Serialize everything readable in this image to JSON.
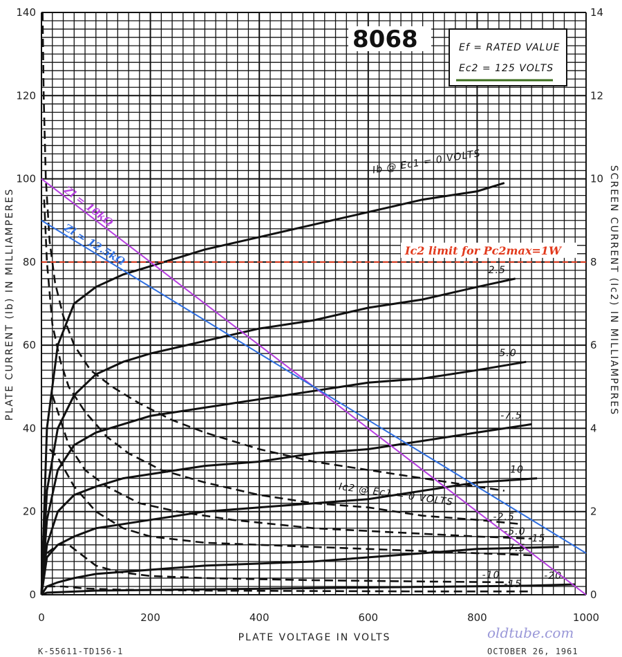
{
  "chart_data": {
    "type": "line",
    "title": "8068",
    "xlabel": "PLATE VOLTAGE IN VOLTS",
    "ylabel": "PLATE CURRENT (Ib) IN MILLIAMPERES",
    "y2label": "SCREEN CURRENT (Ic2) IN MILLIAMPERES",
    "xlim": [
      0,
      1000
    ],
    "ylim": [
      0,
      140
    ],
    "y2lim": [
      0,
      14
    ],
    "x_ticks": [
      0,
      200,
      400,
      600,
      800,
      1000
    ],
    "y_ticks": [
      0,
      20,
      40,
      60,
      80,
      100,
      120,
      140
    ],
    "y2_ticks": [
      0,
      2,
      4,
      6,
      8,
      10,
      12,
      14
    ],
    "grid": true,
    "conditions": [
      "Ef = RATED VALUE",
      "Ec2 = 125 VOLTS"
    ],
    "plate_curves": [
      {
        "label": "Ib @ Ec1 = 0 VOLTS",
        "points": [
          [
            0,
            0
          ],
          [
            10,
            40
          ],
          [
            30,
            60
          ],
          [
            60,
            70
          ],
          [
            100,
            74
          ],
          [
            150,
            77
          ],
          [
            200,
            79
          ],
          [
            300,
            83
          ],
          [
            400,
            86
          ],
          [
            500,
            89
          ],
          [
            600,
            92
          ],
          [
            700,
            95
          ],
          [
            800,
            97
          ],
          [
            850,
            99
          ]
        ]
      },
      {
        "label": "-2.5",
        "points": [
          [
            0,
            0
          ],
          [
            10,
            25
          ],
          [
            30,
            40
          ],
          [
            60,
            48
          ],
          [
            100,
            53
          ],
          [
            150,
            56
          ],
          [
            200,
            58
          ],
          [
            300,
            61
          ],
          [
            400,
            64
          ],
          [
            500,
            66
          ],
          [
            600,
            69
          ],
          [
            700,
            71
          ],
          [
            800,
            74
          ],
          [
            870,
            76
          ]
        ]
      },
      {
        "label": "-5.0",
        "points": [
          [
            0,
            0
          ],
          [
            10,
            18
          ],
          [
            30,
            30
          ],
          [
            60,
            36
          ],
          [
            100,
            39
          ],
          [
            150,
            41
          ],
          [
            200,
            43
          ],
          [
            300,
            45
          ],
          [
            400,
            47
          ],
          [
            500,
            49
          ],
          [
            600,
            51
          ],
          [
            700,
            52
          ],
          [
            800,
            54
          ],
          [
            890,
            56
          ]
        ]
      },
      {
        "label": "-7.5",
        "points": [
          [
            0,
            0
          ],
          [
            10,
            12
          ],
          [
            30,
            20
          ],
          [
            60,
            24
          ],
          [
            100,
            26
          ],
          [
            150,
            28
          ],
          [
            200,
            29
          ],
          [
            300,
            31
          ],
          [
            400,
            32
          ],
          [
            500,
            34
          ],
          [
            600,
            35
          ],
          [
            700,
            37
          ],
          [
            800,
            39
          ],
          [
            900,
            41
          ]
        ]
      },
      {
        "label": "-10",
        "points": [
          [
            0,
            0
          ],
          [
            10,
            9
          ],
          [
            30,
            12
          ],
          [
            60,
            14
          ],
          [
            100,
            16
          ],
          [
            150,
            17
          ],
          [
            200,
            18
          ],
          [
            300,
            20
          ],
          [
            400,
            21
          ],
          [
            500,
            22
          ],
          [
            600,
            23
          ],
          [
            700,
            25
          ],
          [
            800,
            27
          ],
          [
            910,
            28
          ]
        ]
      },
      {
        "label": "-15",
        "points": [
          [
            0,
            0
          ],
          [
            10,
            2
          ],
          [
            30,
            3
          ],
          [
            60,
            4
          ],
          [
            100,
            5
          ],
          [
            200,
            6
          ],
          [
            300,
            7
          ],
          [
            400,
            7.5
          ],
          [
            500,
            8
          ],
          [
            600,
            9
          ],
          [
            700,
            10
          ],
          [
            800,
            11
          ],
          [
            950,
            11.5
          ]
        ]
      },
      {
        "label": "-20",
        "points": [
          [
            0,
            0
          ],
          [
            10,
            0.5
          ],
          [
            100,
            1
          ],
          [
            300,
            1.3
          ],
          [
            500,
            1.6
          ],
          [
            700,
            1.9
          ],
          [
            900,
            2.2
          ],
          [
            980,
            2.5
          ]
        ]
      }
    ],
    "screen_curves": [
      {
        "label": "Ic2 @ Ec1 = 0 VOLTS",
        "points": [
          [
            2,
            140
          ],
          [
            4,
            120
          ],
          [
            8,
            100
          ],
          [
            15,
            85
          ],
          [
            25,
            75
          ],
          [
            40,
            67
          ],
          [
            60,
            60
          ],
          [
            90,
            54
          ],
          [
            130,
            50
          ],
          [
            180,
            46
          ],
          [
            240,
            42
          ],
          [
            300,
            39
          ],
          [
            400,
            35
          ],
          [
            500,
            32
          ],
          [
            600,
            30
          ],
          [
            700,
            28
          ],
          [
            800,
            26
          ],
          [
            850,
            25
          ]
        ]
      },
      {
        "label": "-2.5",
        "points": [
          [
            5,
            95
          ],
          [
            10,
            80
          ],
          [
            20,
            65
          ],
          [
            35,
            56
          ],
          [
            50,
            50
          ],
          [
            80,
            44
          ],
          [
            120,
            38
          ],
          [
            160,
            34
          ],
          [
            220,
            30
          ],
          [
            300,
            27
          ],
          [
            400,
            24
          ],
          [
            500,
            22
          ],
          [
            600,
            21
          ],
          [
            700,
            19
          ],
          [
            800,
            18
          ],
          [
            880,
            17
          ]
        ]
      },
      {
        "label": "-5.0",
        "points": [
          [
            20,
            48
          ],
          [
            50,
            36
          ],
          [
            80,
            30
          ],
          [
            120,
            26
          ],
          [
            180,
            22
          ],
          [
            250,
            20
          ],
          [
            350,
            18
          ],
          [
            500,
            16
          ],
          [
            650,
            15
          ],
          [
            800,
            14
          ],
          [
            900,
            13.5
          ]
        ]
      },
      {
        "label": "-7.5",
        "points": [
          [
            15,
            35
          ],
          [
            30,
            33
          ],
          [
            60,
            26
          ],
          [
            100,
            20
          ],
          [
            150,
            16
          ],
          [
            200,
            14
          ],
          [
            300,
            12.5
          ],
          [
            400,
            12
          ],
          [
            600,
            11
          ],
          [
            800,
            10
          ],
          [
            900,
            9.5
          ]
        ]
      },
      {
        "label": "-10",
        "points": [
          [
            10,
            10
          ],
          [
            30,
            12
          ],
          [
            50,
            12
          ],
          [
            70,
            10
          ],
          [
            100,
            7
          ],
          [
            140,
            5.5
          ],
          [
            200,
            4.5
          ],
          [
            300,
            4
          ],
          [
            500,
            3.5
          ],
          [
            700,
            3.2
          ],
          [
            860,
            3
          ]
        ]
      },
      {
        "label": "-15",
        "points": [
          [
            10,
            2
          ],
          [
            40,
            2
          ],
          [
            80,
            1.5
          ],
          [
            150,
            1.2
          ],
          [
            300,
            1
          ],
          [
            500,
            0.9
          ],
          [
            700,
            0.8
          ],
          [
            900,
            0.8
          ]
        ]
      }
    ],
    "load_lines": [
      {
        "label": "Zl = 10kΩ",
        "color": "#b63ee0",
        "from": [
          0,
          100
        ],
        "to": [
          1000,
          0
        ]
      },
      {
        "label": "Zl = 12.5kΩ",
        "color": "#2f6fe0",
        "from": [
          0,
          90
        ],
        "to": [
          1000,
          10
        ]
      }
    ],
    "limit_line": {
      "label": "Ic2 limit  for Pc2max=1W",
      "y": 80,
      "color": "#e23a1d"
    }
  },
  "footer": {
    "left": "K-55611-TD156-1",
    "date": "OCTOBER 26, 1961",
    "watermark": "oldtube.com"
  }
}
